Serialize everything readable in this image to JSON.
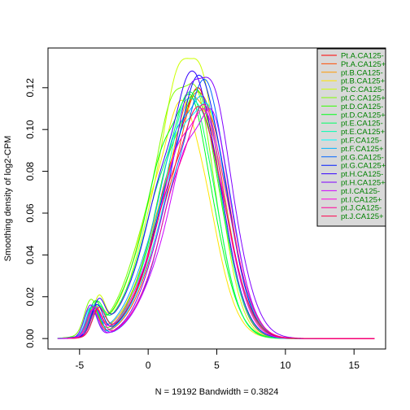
{
  "chart_data": {
    "type": "line",
    "title": "",
    "xlabel": "N = 19192   Bandwidth = 0.3824",
    "ylabel": "Smoothing density of log2-CPM",
    "xlim": [
      -7.3,
      17.3
    ],
    "ylim": [
      -0.005,
      0.139
    ],
    "x_ticks": [
      -5,
      0,
      5,
      10,
      15
    ],
    "x_tick_labels": [
      "-5",
      "0",
      "5",
      "10",
      "15"
    ],
    "y_ticks": [
      0.0,
      0.02,
      0.04,
      0.06,
      0.08,
      0.1,
      0.12
    ],
    "y_tick_labels": [
      "0.00",
      "0.02",
      "0.04",
      "0.06",
      "0.08",
      "0.10",
      "0.12"
    ],
    "grid": false,
    "legend_position": "top-right",
    "legend_text_color": "#008000",
    "legend_background": "#d9d9d9",
    "series": [
      {
        "name": "Pt.A.CA125-",
        "color": "#FF0000",
        "peak": 0.12,
        "mode": 3.6
      },
      {
        "name": "Pt.A.CA125+",
        "color": "#FF4D00",
        "peak": 0.118,
        "mode": 4.0
      },
      {
        "name": "pt.B.CA125-",
        "color": "#FF9900",
        "peak": 0.116,
        "mode": 3.7
      },
      {
        "name": "pt.B.CA125+",
        "color": "#FFE500",
        "peak": 0.114,
        "mode": 2.6
      },
      {
        "name": "Pt.C.CA125-",
        "color": "#CCFF00",
        "peak": 0.134,
        "mode": 3.3
      },
      {
        "name": "pt.C.CA125+",
        "color": "#80FF00",
        "peak": 0.122,
        "mode": 3.0
      },
      {
        "name": "pt.D.CA125-",
        "color": "#33FF00",
        "peak": 0.119,
        "mode": 3.4
      },
      {
        "name": "pt.D.CA125+",
        "color": "#00FF19",
        "peak": 0.117,
        "mode": 2.8
      },
      {
        "name": "pt.E.CA125-",
        "color": "#00FF66",
        "peak": 0.118,
        "mode": 3.2
      },
      {
        "name": "pt.E.CA125+",
        "color": "#00FFB2",
        "peak": 0.115,
        "mode": 3.5
      },
      {
        "name": "pt.F.CA125-",
        "color": "#00FFFF",
        "peak": 0.113,
        "mode": 3.9
      },
      {
        "name": "pt.F.CA125+",
        "color": "#00B3FF",
        "peak": 0.116,
        "mode": 3.6
      },
      {
        "name": "pt.G.CA125-",
        "color": "#0066FF",
        "peak": 0.124,
        "mode": 4.2
      },
      {
        "name": "pt.G.CA125+",
        "color": "#001AFF",
        "peak": 0.126,
        "mode": 3.9
      },
      {
        "name": "pt.H.CA125-",
        "color": "#3300FF",
        "peak": 0.128,
        "mode": 3.4
      },
      {
        "name": "pt.H.CA125+",
        "color": "#8000FF",
        "peak": 0.125,
        "mode": 4.1
      },
      {
        "name": "pt.I.CA125-",
        "color": "#CC00FF",
        "peak": 0.11,
        "mode": 4.3
      },
      {
        "name": "pt.I.CA125+",
        "color": "#FF00E6",
        "peak": 0.11,
        "mode": 3.8
      },
      {
        "name": "pt.J.CA125-",
        "color": "#FF0099",
        "peak": 0.112,
        "mode": 4.0
      },
      {
        "name": "pt.J.CA125+",
        "color": "#FF004D",
        "peak": 0.111,
        "mode": 3.7
      }
    ]
  }
}
